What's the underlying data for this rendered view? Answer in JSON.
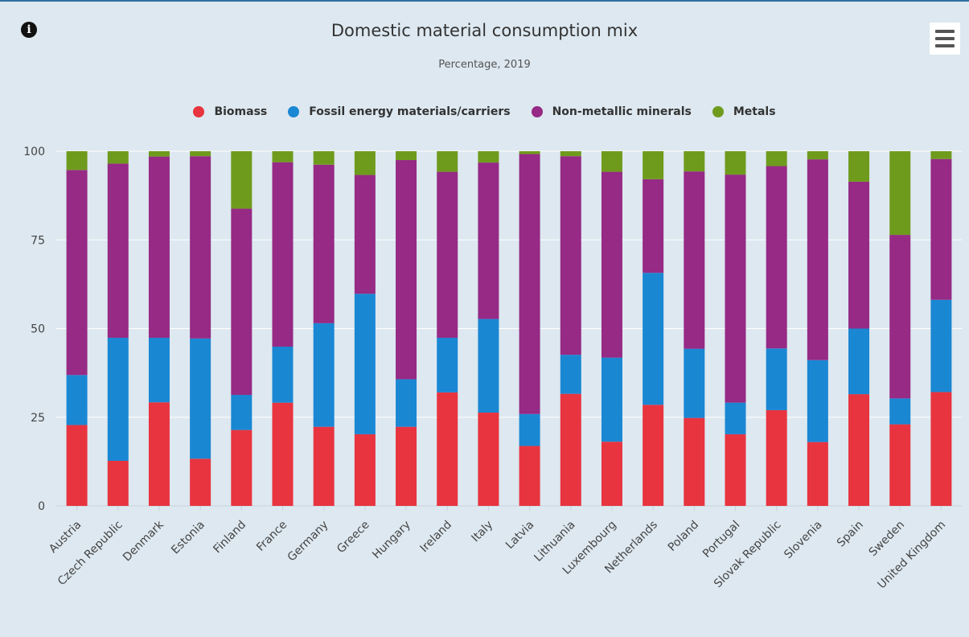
{
  "chart": {
    "title": "Domestic material consumption mix",
    "subtitle": "Percentage, 2019",
    "info_icon": "info-icon",
    "menu_icon": "hamburger-menu-icon"
  },
  "chart_data": {
    "type": "bar",
    "stacked": true,
    "title": "Domestic material consumption mix",
    "subtitle": "Percentage, 2019",
    "xlabel": "",
    "ylabel": "",
    "ylim": [
      0,
      100
    ],
    "yticks": [
      0,
      25,
      50,
      75,
      100
    ],
    "grid": true,
    "legend_position": "top-center",
    "categories": [
      "Austria",
      "Czech Republic",
      "Denmark",
      "Estonia",
      "Finland",
      "France",
      "Germany",
      "Greece",
      "Hungary",
      "Ireland",
      "Italy",
      "Latvia",
      "Lithuania",
      "Luxembourg",
      "Netherlands",
      "Poland",
      "Portugal",
      "Slovak Republic",
      "Slovenia",
      "Spain",
      "Sweden",
      "United Kingdom"
    ],
    "series": [
      {
        "name": "Biomass",
        "color": "#e8343f",
        "values": [
          22.8,
          12.7,
          29.2,
          13.3,
          21.4,
          29.1,
          22.3,
          20.2,
          22.3,
          32.0,
          26.3,
          16.9,
          31.6,
          18.1,
          28.5,
          24.8,
          20.2,
          27.0,
          18.0,
          31.5,
          23.0,
          32.1
        ]
      },
      {
        "name": "Fossil energy materials/carriers",
        "color": "#1a87d3",
        "values": [
          14.1,
          34.7,
          18.2,
          33.9,
          9.9,
          15.8,
          29.2,
          39.6,
          13.4,
          15.4,
          26.4,
          9.0,
          11.0,
          23.7,
          37.2,
          19.5,
          8.9,
          17.4,
          23.1,
          18.5,
          7.3,
          26.0
        ]
      },
      {
        "name": "Non-metallic minerals",
        "color": "#962a85",
        "values": [
          57.8,
          49.1,
          51.1,
          51.4,
          52.5,
          52.0,
          44.7,
          33.5,
          61.8,
          46.8,
          44.1,
          73.3,
          56.0,
          52.4,
          26.4,
          50.0,
          64.3,
          51.4,
          56.6,
          41.4,
          46.1,
          39.7
        ]
      },
      {
        "name": "Metals",
        "color": "#6f9b1d",
        "values": [
          5.3,
          3.5,
          1.5,
          1.4,
          16.2,
          3.1,
          3.8,
          6.7,
          2.5,
          5.8,
          3.2,
          0.8,
          1.4,
          5.8,
          7.9,
          5.7,
          6.6,
          4.2,
          2.3,
          8.6,
          23.6,
          2.2
        ]
      }
    ]
  }
}
